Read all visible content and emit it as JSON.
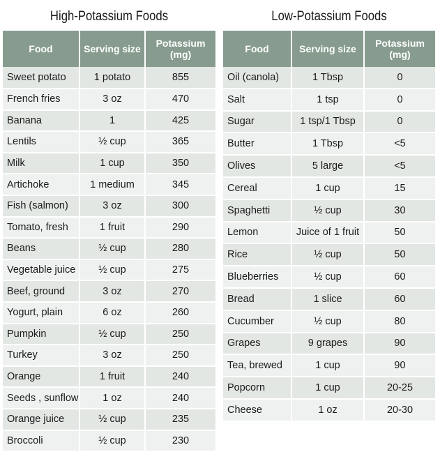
{
  "high": {
    "title": "High-Potassium Foods",
    "headers": [
      "Food",
      "Serving size",
      "Potassium (mg)"
    ],
    "rows": [
      [
        "Sweet potato",
        "1 potato",
        "855"
      ],
      [
        "French fries",
        "3 oz",
        "470"
      ],
      [
        "Banana",
        "1",
        "425"
      ],
      [
        "Lentils",
        "½ cup",
        "365"
      ],
      [
        "Milk",
        "1 cup",
        "350"
      ],
      [
        "Artichoke",
        "1 medium",
        "345"
      ],
      [
        "Fish (salmon)",
        "3 oz",
        "300"
      ],
      [
        "Tomato, fresh",
        "1 fruit",
        "290"
      ],
      [
        "Beans",
        "½ cup",
        "280"
      ],
      [
        "Vegetable juice",
        "½ cup",
        "275"
      ],
      [
        "Beef, ground",
        "3 oz",
        "270"
      ],
      [
        "Yogurt, plain",
        "6 oz",
        "260"
      ],
      [
        "Pumpkin",
        "½ cup",
        "250"
      ],
      [
        "Turkey",
        "3 oz",
        "250"
      ],
      [
        "Orange",
        "1 fruit",
        "240"
      ],
      [
        "Seeds , sunflower",
        "1 oz",
        "240"
      ],
      [
        "Orange juice",
        "½ cup",
        "235"
      ],
      [
        "Broccoli",
        "½ cup",
        "230"
      ]
    ]
  },
  "low": {
    "title": "Low-Potassium Foods",
    "headers": [
      "Food",
      "Serving size",
      "Potassium (mg)"
    ],
    "rows": [
      [
        "Oil (canola)",
        "1 Tbsp",
        "0"
      ],
      [
        "Salt",
        "1 tsp",
        "0"
      ],
      [
        "Sugar",
        "1 tsp/1 Tbsp",
        "0"
      ],
      [
        "Butter",
        "1 Tbsp",
        "<5"
      ],
      [
        "Olives",
        "5 large",
        "<5"
      ],
      [
        "Cereal",
        "1 cup",
        "15"
      ],
      [
        "Spaghetti",
        "½ cup",
        "30"
      ],
      [
        "Lemon",
        "Juice of 1 fruit",
        "50"
      ],
      [
        "Rice",
        "½ cup",
        "50"
      ],
      [
        "Blueberries",
        "½ cup",
        "60"
      ],
      [
        "Bread",
        "1 slice",
        "60"
      ],
      [
        "Cucumber",
        "½ cup",
        "80"
      ],
      [
        "Grapes",
        "9 grapes",
        "90"
      ],
      [
        "Tea, brewed",
        "1 cup",
        "90"
      ],
      [
        "Popcorn",
        "1 cup",
        "20-25"
      ],
      [
        "Cheese",
        "1 oz",
        "20-30"
      ]
    ]
  }
}
